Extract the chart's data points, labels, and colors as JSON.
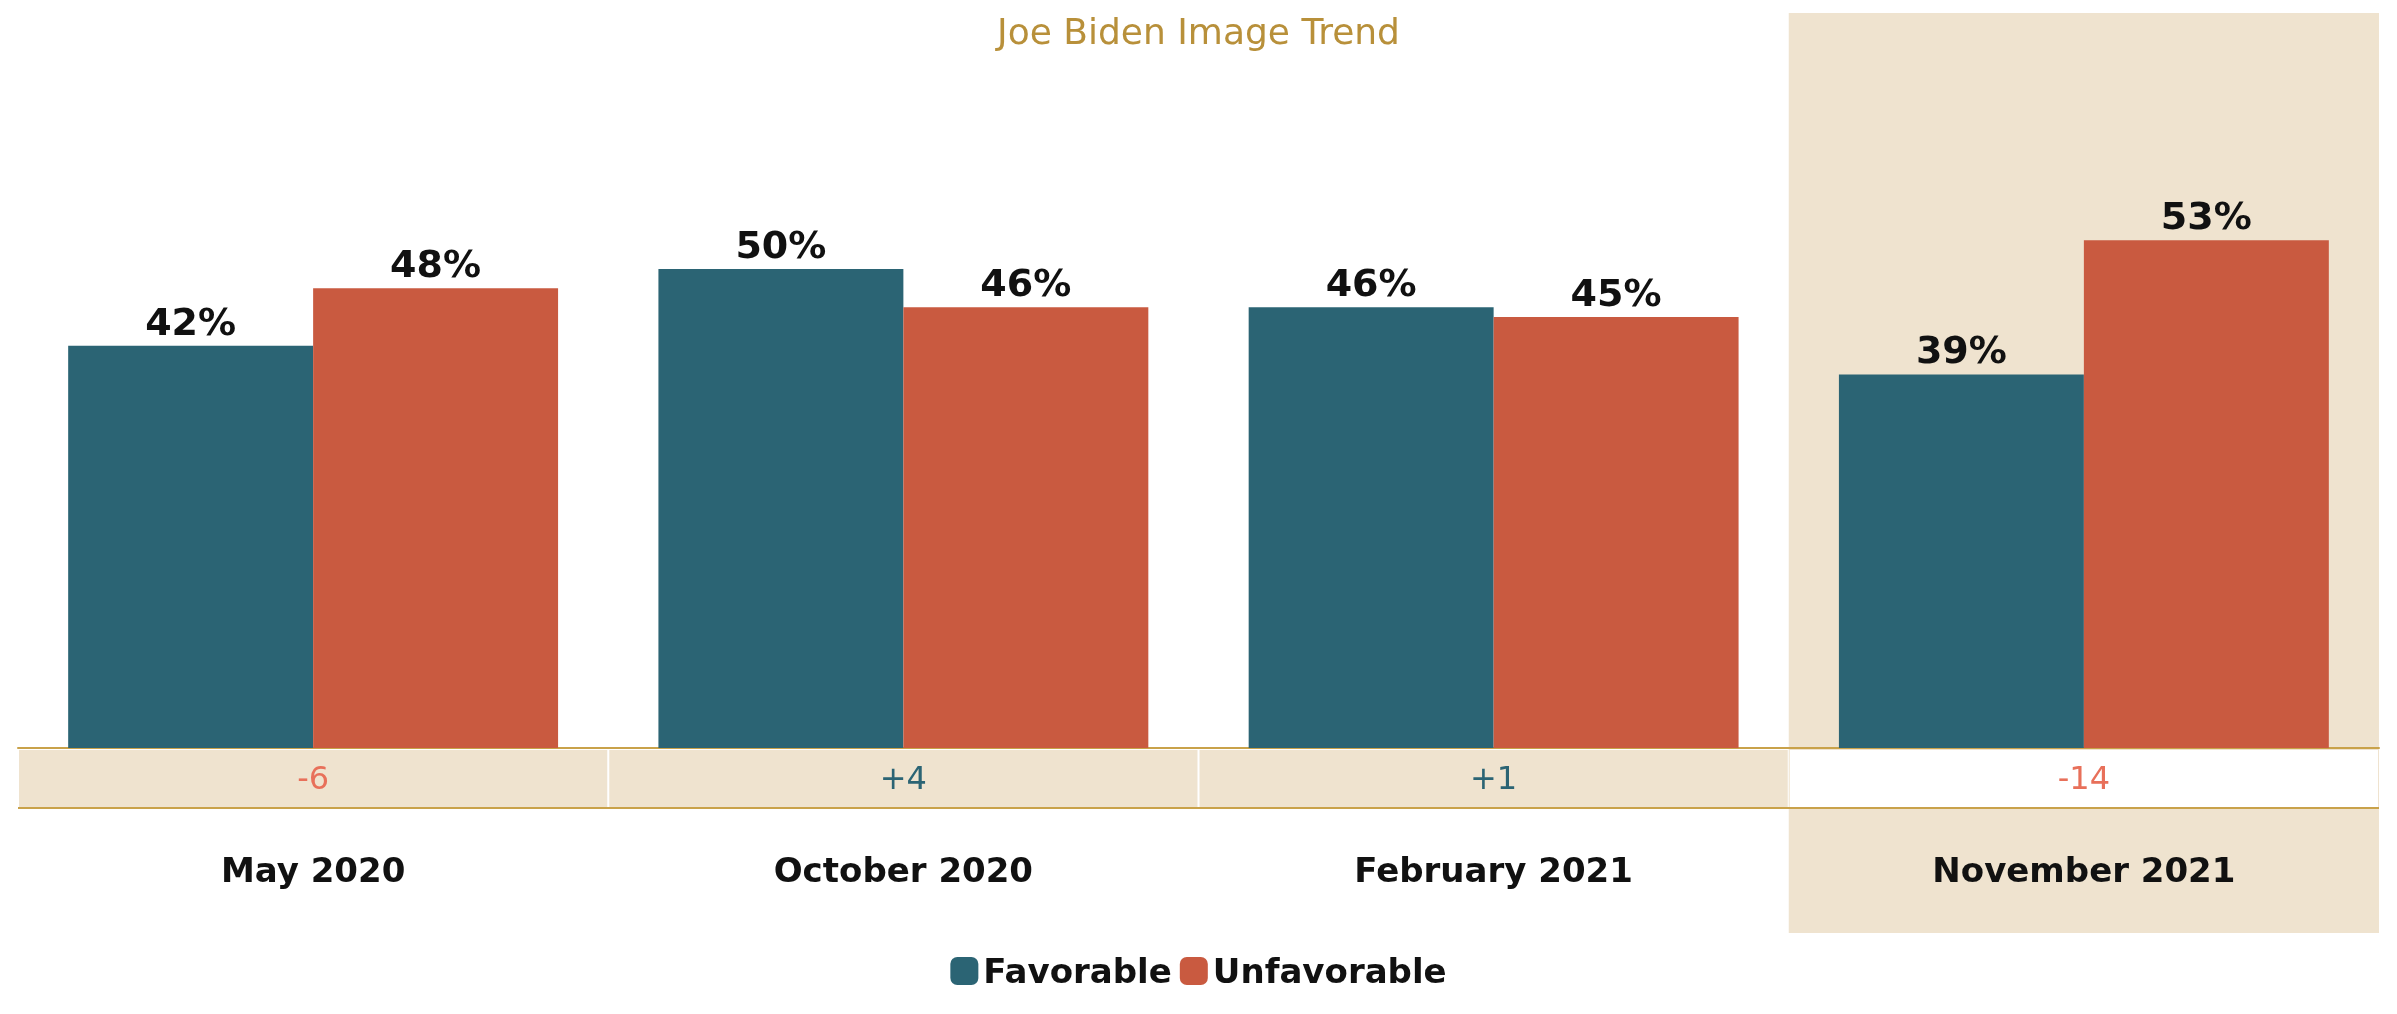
{
  "chart_data": {
    "type": "bar",
    "title": "Joe Biden Image Trend",
    "categories": [
      "May 2020",
      "October 2020",
      "February 2021",
      "November 2021"
    ],
    "series": [
      {
        "name": "Favorable",
        "color": "#2b6474",
        "values": [
          42,
          50,
          46,
          39
        ],
        "value_labels": [
          "42%",
          "50%",
          "46%",
          "39%"
        ]
      },
      {
        "name": "Unfavorable",
        "color": "#c95a40",
        "values": [
          48,
          46,
          45,
          53
        ],
        "value_labels": [
          "48%",
          "46%",
          "45%",
          "53%"
        ]
      }
    ],
    "annotations": [
      "-6",
      "+4",
      "+1",
      "-14"
    ],
    "bands": [
      {
        "axis": "x",
        "from": "November 2021",
        "to": "November 2021",
        "color": "#efe3cf"
      }
    ],
    "legend": "bottom",
    "grid": false
  }
}
